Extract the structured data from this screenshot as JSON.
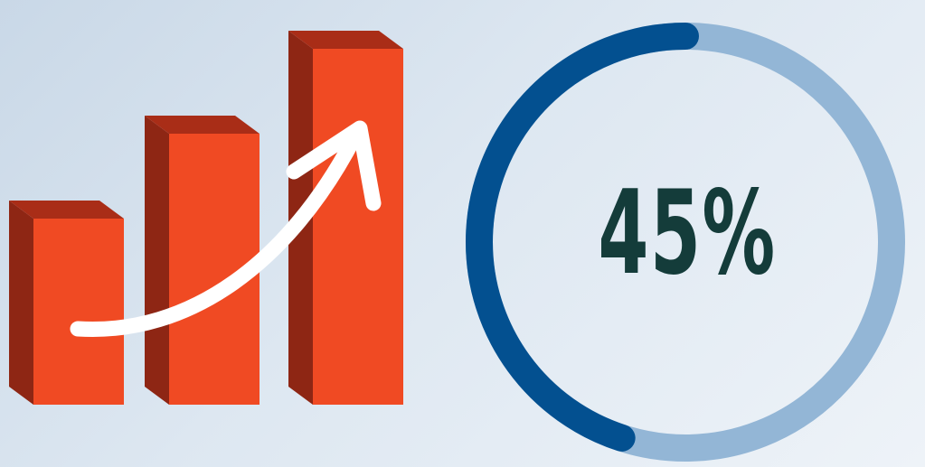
{
  "growth_graphic": {
    "bar_levels": [
      0.46,
      0.67,
      0.88
    ],
    "bar_front_color": "#f04a23",
    "bar_side_color": "#8e2614",
    "bar_top_color": "#a92d17",
    "arrow_color": "#ffffff",
    "arrow_icon": "trend-up-arrow-icon"
  },
  "progress_ring": {
    "value_text": "45%",
    "fraction": 0.45,
    "filled_color": "#035090",
    "track_color": "#93b6d6",
    "text_color": "#143c3a"
  }
}
